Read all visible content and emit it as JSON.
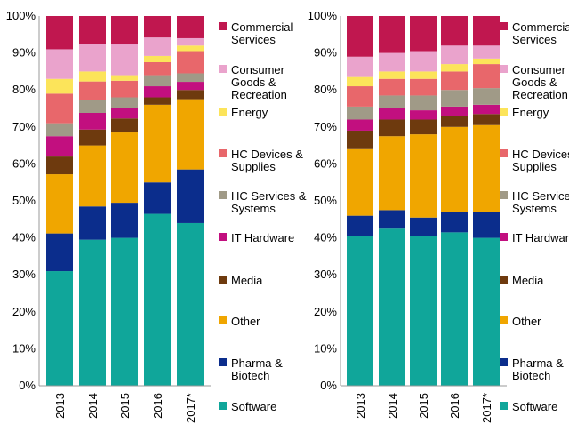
{
  "chart_data": [
    {
      "type": "bar",
      "stacked": true,
      "categories": [
        "2013",
        "2014",
        "2015",
        "2016",
        "2017*"
      ],
      "ylim": [
        0,
        100
      ],
      "ytick_labels": [
        "0%",
        "10%",
        "20%",
        "30%",
        "40%",
        "50%",
        "60%",
        "70%",
        "80%",
        "90%",
        "100%"
      ],
      "series": [
        {
          "name": "Software",
          "color": "#10A69A",
          "values": [
            31,
            39.5,
            40,
            46.5,
            44
          ]
        },
        {
          "name": "Pharma & Biotech",
          "color": "#0B2D8C",
          "values": [
            10.2,
            9,
            9.5,
            8.5,
            14.5
          ]
        },
        {
          "name": "Other",
          "color": "#F0A600",
          "values": [
            16,
            16.5,
            19,
            21,
            19
          ]
        },
        {
          "name": "Media",
          "color": "#6E3A0E",
          "values": [
            4.8,
            4.3,
            3.8,
            2,
            2.5
          ]
        },
        {
          "name": "IT Hardware",
          "color": "#C20F7F",
          "values": [
            5.5,
            4.5,
            2.7,
            3,
            2.2
          ]
        },
        {
          "name": "HC Services & Systems",
          "color": "#A09A87",
          "values": [
            3.5,
            3.5,
            3,
            3,
            2.3
          ]
        },
        {
          "name": "HC Devices & Supplies",
          "color": "#E8676B",
          "values": [
            8,
            5,
            4.5,
            3.5,
            6
          ]
        },
        {
          "name": "Energy",
          "color": "#FCE45A",
          "values": [
            4,
            2.7,
            1.5,
            1.7,
            1.5
          ]
        },
        {
          "name": "Consumer Goods & Recreation",
          "color": "#EAA3CC",
          "values": [
            8,
            7.5,
            8.3,
            5,
            2
          ]
        },
        {
          "name": "Commercial Services",
          "color": "#C0174F",
          "values": [
            9,
            7.5,
            7.7,
            5.8,
            6
          ]
        }
      ]
    },
    {
      "type": "bar",
      "stacked": true,
      "categories": [
        "2013",
        "2014",
        "2015",
        "2016",
        "2017*"
      ],
      "ylim": [
        0,
        100
      ],
      "ytick_labels": [
        "0%",
        "10%",
        "20%",
        "30%",
        "40%",
        "50%",
        "60%",
        "70%",
        "80%",
        "90%",
        "100%"
      ],
      "series": [
        {
          "name": "Software",
          "color": "#10A69A",
          "values": [
            40.5,
            42.5,
            40.5,
            41.5,
            40
          ]
        },
        {
          "name": "Pharma & Biotech",
          "color": "#0B2D8C",
          "values": [
            5.5,
            5,
            5,
            5.5,
            7
          ]
        },
        {
          "name": "Other",
          "color": "#F0A600",
          "values": [
            18,
            20,
            22.5,
            23,
            23.5
          ]
        },
        {
          "name": "Media",
          "color": "#6E3A0E",
          "values": [
            5,
            4.5,
            4,
            3,
            3
          ]
        },
        {
          "name": "IT Hardware",
          "color": "#C20F7F",
          "values": [
            3,
            3,
            2.5,
            2.5,
            2.5
          ]
        },
        {
          "name": "HC Services & Systems",
          "color": "#A09A87",
          "values": [
            3.5,
            3.5,
            4,
            4.5,
            4.5
          ]
        },
        {
          "name": "HC Devices & Supplies",
          "color": "#E8676B",
          "values": [
            5.5,
            4.5,
            4.5,
            5,
            6.5
          ]
        },
        {
          "name": "Energy",
          "color": "#FCE45A",
          "values": [
            2.5,
            2,
            2,
            2,
            1.5
          ]
        },
        {
          "name": "Consumer Goods & Recreation",
          "color": "#EAA3CC",
          "values": [
            5.5,
            5,
            5.5,
            5,
            3.5
          ]
        },
        {
          "name": "Commercial Services",
          "color": "#C0174F",
          "values": [
            11,
            10,
            9.5,
            8,
            8
          ]
        }
      ]
    }
  ],
  "legend": [
    {
      "lines": [
        "Commercial",
        "Services"
      ],
      "color": "#C0174F"
    },
    {
      "lines": [
        "Consumer",
        "Goods &",
        "Recreation"
      ],
      "color": "#EAA3CC"
    },
    {
      "lines": [
        "Energy"
      ],
      "color": "#FCE45A"
    },
    {
      "lines": [
        "HC Devices &",
        "Supplies"
      ],
      "color": "#E8676B"
    },
    {
      "lines": [
        "HC Services &",
        "Systems"
      ],
      "color": "#A09A87"
    },
    {
      "lines": [
        "IT Hardware"
      ],
      "color": "#C20F7F"
    },
    {
      "lines": [
        "Media"
      ],
      "color": "#6E3A0E"
    },
    {
      "lines": [
        "Other"
      ],
      "color": "#F0A600"
    },
    {
      "lines": [
        "Pharma &",
        "Biotech"
      ],
      "color": "#0B2D8C"
    },
    {
      "lines": [
        "Software"
      ],
      "color": "#10A69A"
    }
  ]
}
